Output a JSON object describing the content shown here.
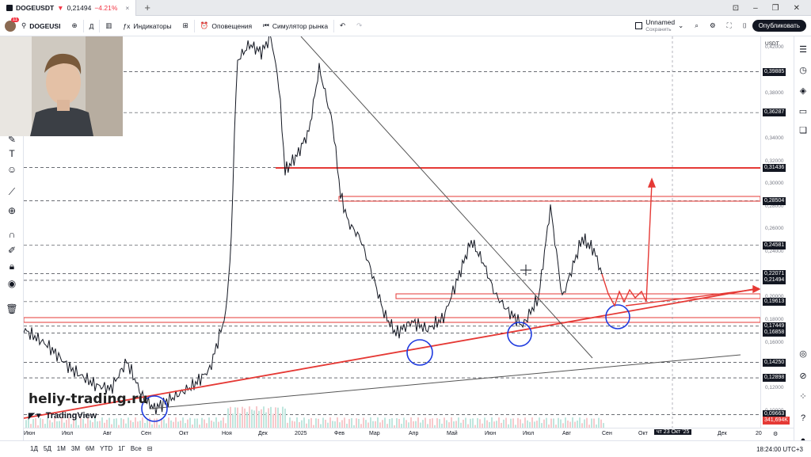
{
  "window": {
    "tab_symbol": "DOGEUSDT",
    "tab_arrow": "▼",
    "tab_price": "0,21494",
    "tab_change": "−4.21%",
    "tab_close": "×",
    "new_tab": "+"
  },
  "toolbar": {
    "avatar_badge": "11",
    "symbol": "DOGEUSI",
    "add_symbol": "⊕",
    "interval": "Д",
    "indicators": "Индикаторы",
    "layouts_icon": "grid-icon",
    "alerts": "Оповещения",
    "replay": "Симулятор рынка",
    "undo": "↶",
    "redo": "↷",
    "layout_name": "Unnamed",
    "layout_status": "Сохранить",
    "publish": "Опубликовать"
  },
  "chart": {
    "currency": "USDT",
    "watermark": "heliy-trading.ru",
    "tv_logo": "TradingView",
    "price_labels": [
      {
        "text": "0,39885",
        "y": 0.39885
      },
      {
        "text": "0,36287",
        "y": 0.36287
      },
      {
        "text": "0,31436",
        "y": 0.31436
      },
      {
        "text": "0,28504",
        "y": 0.28504
      },
      {
        "text": "0,24581",
        "y": 0.24581
      },
      {
        "text": "0,22071",
        "y": 0.22071
      },
      {
        "text": "0,21494",
        "y": 0.21494
      },
      {
        "text": "0,19613",
        "y": 0.19613
      },
      {
        "text": "0,17449",
        "y": 0.17449
      },
      {
        "text": "0,16858",
        "y": 0.16858
      },
      {
        "text": "0,14250",
        "y": 0.1425
      },
      {
        "text": "0,12898",
        "y": 0.12898
      },
      {
        "text": "0,09663",
        "y": 0.09663
      }
    ],
    "price_ticks": [
      "0,42000",
      "0,38000",
      "0,34000",
      "0,32000",
      "0,30000",
      "0,28000",
      "0,26000",
      "0,24000",
      "0,20000",
      "0,18000",
      "0,16000",
      "0,12000",
      "0,10000"
    ],
    "volume_label": "341,694K",
    "time_ticks": [
      "Июн",
      "Июл",
      "Авг",
      "Сен",
      "Окт",
      "Ноя",
      "Дек",
      "2025",
      "Фев",
      "Мар",
      "Апр",
      "Май",
      "Июн",
      "Июл",
      "Авг",
      "Сен",
      "Окт",
      "Ноя",
      "Дек",
      "20"
    ],
    "crosshair_date": "чт 23 Окт '25"
  },
  "bottom": {
    "ranges": [
      "1Д",
      "5Д",
      "1М",
      "3М",
      "6М",
      "YTD",
      "1Г",
      "Все"
    ],
    "time": "18:24:00 UTC+3"
  }
}
